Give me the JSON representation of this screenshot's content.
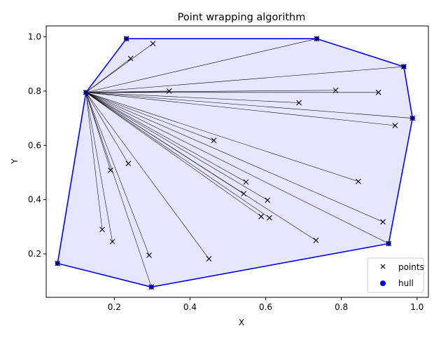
{
  "chart_data": {
    "type": "scatter",
    "title": "Point wrapping algorithm",
    "xlabel": "X",
    "ylabel": "Y",
    "xlim": [
      0.02,
      1.03
    ],
    "ylim": [
      0.04,
      1.04
    ],
    "xticks": [
      "0.2",
      "0.4",
      "0.6",
      "0.8",
      "1.0"
    ],
    "yticks": [
      "0.2",
      "0.4",
      "0.6",
      "0.8",
      "1.0"
    ],
    "grid": false,
    "legend": {
      "position": "lower-right",
      "entries": [
        "points",
        "hull"
      ]
    },
    "colors": {
      "hull": "#0000ff",
      "hull_fill": "#e6e6ff",
      "points": "#000000",
      "rays": "#000000"
    },
    "origin": [
      0.125,
      0.795
    ],
    "points": [
      [
        0.05,
        0.165
      ],
      [
        0.125,
        0.795
      ],
      [
        0.232,
        0.993
      ],
      [
        0.243,
        0.92
      ],
      [
        0.302,
        0.975
      ],
      [
        0.345,
        0.8
      ],
      [
        0.735,
        0.993
      ],
      [
        0.785,
        0.803
      ],
      [
        0.898,
        0.795
      ],
      [
        0.688,
        0.757
      ],
      [
        0.965,
        0.89
      ],
      [
        0.988,
        0.7
      ],
      [
        0.942,
        0.673
      ],
      [
        0.463,
        0.618
      ],
      [
        0.237,
        0.533
      ],
      [
        0.19,
        0.508
      ],
      [
        0.548,
        0.465
      ],
      [
        0.845,
        0.467
      ],
      [
        0.542,
        0.422
      ],
      [
        0.605,
        0.398
      ],
      [
        0.588,
        0.338
      ],
      [
        0.61,
        0.333
      ],
      [
        0.91,
        0.318
      ],
      [
        0.733,
        0.25
      ],
      [
        0.925,
        0.238
      ],
      [
        0.168,
        0.29
      ],
      [
        0.195,
        0.245
      ],
      [
        0.292,
        0.195
      ],
      [
        0.45,
        0.182
      ],
      [
        0.298,
        0.078
      ]
    ],
    "hull": [
      [
        0.05,
        0.165
      ],
      [
        0.125,
        0.795
      ],
      [
        0.232,
        0.993
      ],
      [
        0.735,
        0.993
      ],
      [
        0.965,
        0.89
      ],
      [
        0.988,
        0.7
      ],
      [
        0.925,
        0.238
      ],
      [
        0.298,
        0.078
      ]
    ]
  }
}
